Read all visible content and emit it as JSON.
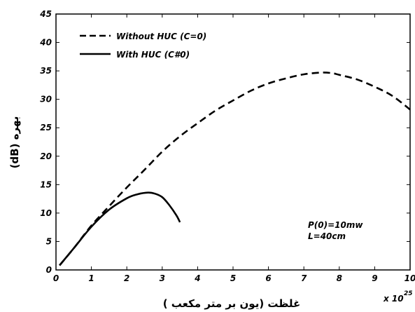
{
  "chart_data": {
    "type": "line",
    "xlabel": "غلظت (یون بر متر مکعب )",
    "ylabel": "بهره (dB)",
    "x_multiplier": "x 10",
    "x_multiplier_exp": "25",
    "xlim": [
      0,
      10
    ],
    "ylim": [
      0,
      45
    ],
    "xticks": [
      0,
      1,
      2,
      3,
      4,
      5,
      6,
      7,
      8,
      9,
      10
    ],
    "xtick_labels": [
      "0",
      "1",
      "2",
      "3",
      "4",
      "5",
      "6",
      "7",
      "8",
      "9",
      "10"
    ],
    "yticks": [
      0,
      5,
      10,
      15,
      20,
      25,
      30,
      35,
      40,
      45
    ],
    "ytick_labels": [
      "0",
      "5",
      "10",
      "15",
      "20",
      "25",
      "30",
      "35",
      "40",
      "45"
    ],
    "grid": false,
    "legend_position": "top-left",
    "series": [
      {
        "name": "Without HUC (C=0)",
        "style": "dashed",
        "color": "#000000",
        "x": [
          0.1,
          0.5,
          1.0,
          1.5,
          2.0,
          2.5,
          3.0,
          3.5,
          4.0,
          4.5,
          5.0,
          5.5,
          6.0,
          6.5,
          7.0,
          7.5,
          7.8,
          8.0,
          8.5,
          9.0,
          9.5,
          10.0
        ],
        "y": [
          0.8,
          3.8,
          7.8,
          11.2,
          14.5,
          17.6,
          20.8,
          23.5,
          25.8,
          28.0,
          29.8,
          31.5,
          32.8,
          33.7,
          34.4,
          34.7,
          34.6,
          34.3,
          33.5,
          32.2,
          30.6,
          28.2
        ]
      },
      {
        "name": "With HUC (C#0)",
        "style": "solid",
        "color": "#000000",
        "x": [
          0.1,
          0.5,
          1.0,
          1.5,
          2.0,
          2.3,
          2.6,
          2.8,
          3.0,
          3.2,
          3.4,
          3.5
        ],
        "y": [
          0.8,
          3.8,
          7.6,
          10.6,
          12.6,
          13.3,
          13.6,
          13.4,
          12.8,
          11.4,
          9.6,
          8.4
        ]
      }
    ],
    "annotations": [
      "P(0)=10mw",
      "L=40cm"
    ]
  }
}
